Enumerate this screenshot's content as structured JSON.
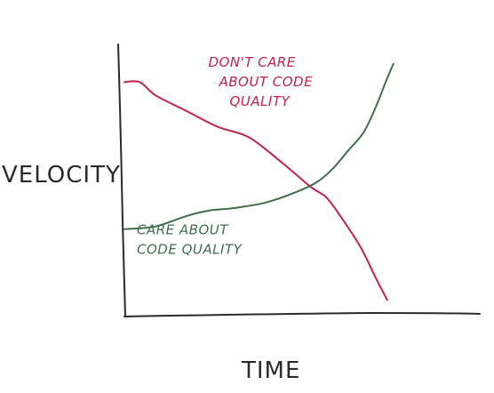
{
  "chart_data": {
    "type": "line",
    "title": "",
    "xlabel": "TIME",
    "ylabel": "VELOCITY",
    "grid": false,
    "legend": "none",
    "xlim": [
      0,
      100
    ],
    "ylim": [
      0,
      100
    ],
    "series": [
      {
        "color": "#c4204e",
        "x": [
          0,
          5,
          10,
          20,
          30,
          40,
          50,
          60,
          65,
          70,
          76,
          81,
          84.5
        ],
        "y": [
          89,
          89,
          84,
          78,
          72,
          68,
          59,
          49,
          45,
          37,
          26,
          14,
          6
        ]
      },
      {
        "color": "#3f6e4c",
        "x": [
          0,
          10,
          20,
          27,
          35,
          45,
          55,
          62,
          67,
          72,
          77,
          81,
          84,
          86.5
        ],
        "y": [
          33,
          34,
          38,
          40,
          41,
          43,
          47,
          51,
          56,
          63,
          70,
          80,
          89,
          96
        ]
      }
    ],
    "annotations": [
      {
        "lines": [
          "DON'T CARE",
          "ABOUT CODE",
          "QUALITY"
        ],
        "color": "#c4204e",
        "x": 27,
        "y": 95
      },
      {
        "lines": [
          "CARE ABOUT",
          "CODE QUALITY"
        ],
        "color": "#3f6e4c",
        "x": 4,
        "y": 31
      }
    ],
    "axis_color": "#2b2b2b"
  }
}
